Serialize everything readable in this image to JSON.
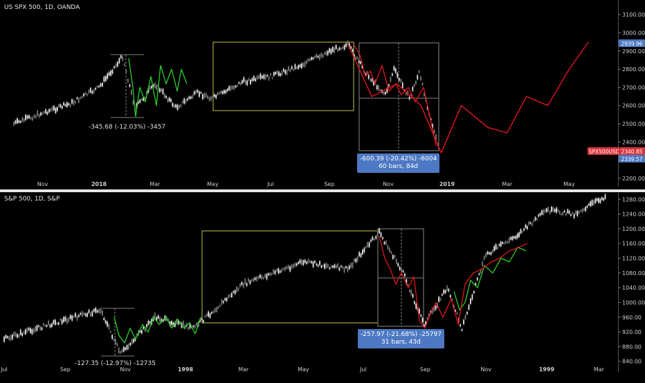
{
  "top_chart": {
    "title": "US SPX 500, 1D, OANDA",
    "x_ticks": [
      "Nov",
      "2018",
      "Mar",
      "May",
      "Jul",
      "Sep",
      "Nov",
      "2019",
      "Mar",
      "May"
    ],
    "y_ticks": [
      "3100.00",
      "3000.00",
      "2900.00",
      "2800.00",
      "2700.00",
      "2600.00",
      "2500.00",
      "2400.00",
      "2300.00",
      "2200.00"
    ],
    "price_tag_top": "2939.96",
    "symbol_tag": "SPX500USD",
    "symbol_price": "2340.85",
    "low_tag": "2339.57",
    "measure_left": "-345.68 (-12.03%) -3457",
    "measure_right_line1": "-600.39 (-20.42%) -6004",
    "measure_right_line2": "60 bars, 84d",
    "colors": {
      "overlay_green": "#2bd12b",
      "overlay_red": "#e0161c",
      "box": "#c8c84a",
      "tag_blue": "#4d79c4",
      "tag_red": "#d9343b"
    }
  },
  "bottom_chart": {
    "title": "S&P 500, 1D, S&P",
    "x_ticks": [
      "Jul",
      "Sep",
      "Nov",
      "1998",
      "Mar",
      "May",
      "Jul",
      "Sep",
      "Nov",
      "1999",
      "Mar"
    ],
    "y_ticks": [
      "1280.00",
      "1240.00",
      "1200.00",
      "1160.00",
      "1120.00",
      "1080.00",
      "1040.00",
      "1000.00",
      "960.00",
      "920.00",
      "880.00",
      "840.00"
    ],
    "measure_left": "-127.35 (-12.97%) -12735",
    "measure_right_line1": "-257.97 (-21.68%) -25797",
    "measure_right_line2": "31 bars, 43d"
  },
  "chart_data": [
    {
      "type": "line",
      "title": "US SPX 500, 1D, OANDA",
      "xlabel": "",
      "ylabel": "",
      "ylim": [
        2200,
        3150
      ],
      "series": [
        {
          "name": "",
          "x": [
            "2017-10-01",
            "2017-11-01",
            "2017-12-01",
            "2018-01-01",
            "2018-01-26",
            "2018-02-08",
            "2018-03-01",
            "2018-03-23",
            "2018-04-15",
            "2018-05-01",
            "2018-06-01",
            "2018-07-01",
            "2018-08-01",
            "2018-09-01",
            "2018-09-20",
            "2018-10-10",
            "2018-10-29",
            "2018-11-07",
            "2018-11-23",
            "2018-12-03",
            "2018-12-24"
          ],
          "values": [
            2500,
            2560,
            2610,
            2700,
            2870,
            2585,
            2720,
            2590,
            2670,
            2640,
            2730,
            2760,
            2820,
            2900,
            2935,
            2770,
            2660,
            2800,
            2640,
            2780,
            2346
          ]
        },
        {
          "name": "",
          "x": [
            "2018-09-20",
            "2018-10-15",
            "2018-11-10",
            "2018-12-05",
            "2018-12-26",
            "2019-01-15",
            "2019-02-10",
            "2019-03-01",
            "2019-03-20",
            "2019-04-10",
            "2019-05-01",
            "2019-05-20"
          ],
          "values": [
            2940,
            2650,
            2720,
            2600,
            2340,
            2600,
            2480,
            2450,
            2650,
            2600,
            2800,
            2950
          ]
        }
      ]
    },
    {
      "type": "line",
      "title": "S&P 500, 1D, S&P",
      "xlabel": "",
      "ylabel": "",
      "ylim": [
        830,
        1290
      ],
      "series": [
        {
          "name": "",
          "x": [
            "1997-07-01",
            "1997-08-15",
            "1997-10-07",
            "1997-10-27",
            "1997-12-01",
            "1998-01-09",
            "1998-03-01",
            "1998-05-01",
            "1998-06-15",
            "1998-07-17",
            "1998-08-10",
            "1998-08-31",
            "1998-09-23",
            "1998-10-08",
            "1998-11-01",
            "1998-12-01",
            "1999-01-01",
            "1999-02-01",
            "1999-03-10"
          ],
          "values": [
            900,
            940,
            980,
            860,
            960,
            930,
            1050,
            1110,
            1090,
            1190,
            1080,
            940,
            1040,
            930,
            1130,
            1180,
            1250,
            1240,
            1290
          ]
        }
      ]
    }
  ]
}
